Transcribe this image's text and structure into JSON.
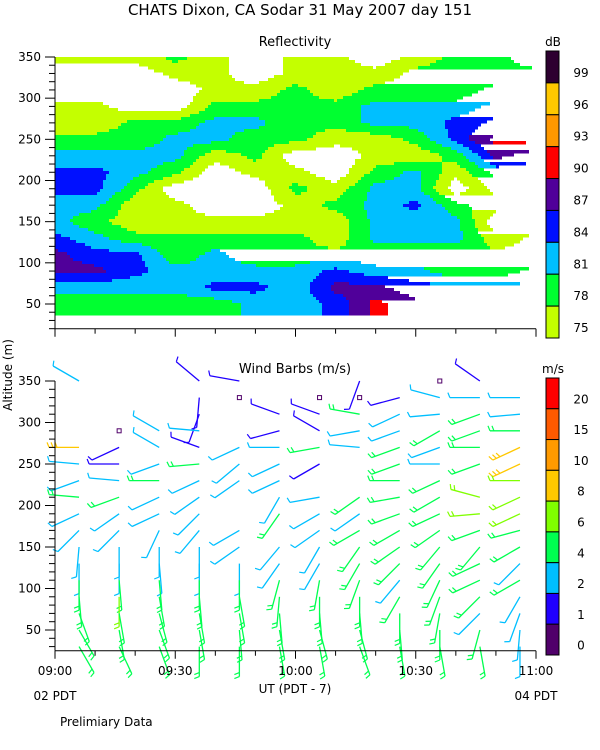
{
  "title": "CHATS  Dixon, CA   Sodar   31 May 2007   day 151",
  "y_axis_label": "Altitude (m)",
  "x_axis_label": "UT  (PDT - 7)",
  "x_start_local": "02 PDT",
  "x_end_local": "04 PDT",
  "footer_note": "Prelimiary Data",
  "chart_data": [
    {
      "type": "heatmap",
      "title": "Reflectivity",
      "colorbar_unit": "dB",
      "colorbar_levels": [
        75,
        78,
        81,
        84,
        87,
        90,
        93,
        96,
        99
      ],
      "colorbar_colors": [
        "#c4ff00",
        "#00ff30",
        "#00bfff",
        "#0010ff",
        "#50009a",
        "#ff0000",
        "#ff9800",
        "#ffc800",
        "#2d0030"
      ],
      "below_min_color": "#ffffff",
      "ylabel": "Altitude (m)",
      "ylim": [
        20,
        350
      ],
      "yticks": [
        50,
        100,
        150,
        200,
        250,
        300,
        350
      ],
      "x_times": [
        "09:00",
        "09:10",
        "09:20",
        "09:30",
        "09:40",
        "09:50",
        "10:00",
        "10:10",
        "10:20",
        "10:30",
        "10:40",
        "10:50",
        "11:00"
      ],
      "altitudes": [
        350,
        330,
        310,
        290,
        270,
        250,
        230,
        210,
        190,
        170,
        150,
        130,
        110,
        90,
        70,
        50
      ],
      "values_db": [
        [
          76,
          76,
          76,
          79,
          76,
          73,
          76,
          76,
          73,
          76,
          79,
          79,
          76
        ],
        [
          73,
          73,
          73,
          76,
          76,
          73,
          76,
          76,
          76,
          79,
          79,
          79,
          79
        ],
        [
          73,
          73,
          73,
          73,
          76,
          76,
          79,
          76,
          79,
          79,
          79,
          82,
          82
        ],
        [
          76,
          76,
          73,
          73,
          79,
          79,
          79,
          79,
          82,
          82,
          82,
          85,
          85
        ],
        [
          76,
          76,
          79,
          79,
          82,
          82,
          79,
          79,
          82,
          82,
          85,
          88,
          88
        ],
        [
          79,
          79,
          79,
          82,
          82,
          79,
          79,
          76,
          76,
          79,
          85,
          91,
          91
        ],
        [
          82,
          82,
          82,
          82,
          76,
          79,
          73,
          73,
          76,
          76,
          79,
          88,
          85
        ],
        [
          85,
          85,
          82,
          79,
          73,
          76,
          76,
          73,
          79,
          82,
          76,
          82,
          82
        ],
        [
          85,
          85,
          79,
          73,
          73,
          73,
          79,
          76,
          82,
          82,
          73,
          79,
          79
        ],
        [
          82,
          82,
          76,
          76,
          73,
          73,
          76,
          79,
          82,
          85,
          79,
          76,
          76
        ],
        [
          82,
          79,
          76,
          76,
          76,
          76,
          76,
          76,
          82,
          82,
          82,
          73,
          76
        ],
        [
          85,
          82,
          79,
          79,
          79,
          79,
          79,
          76,
          82,
          82,
          82,
          76,
          79
        ],
        [
          88,
          85,
          85,
          79,
          82,
          79,
          79,
          79,
          79,
          79,
          79,
          79,
          79
        ],
        [
          88,
          88,
          85,
          82,
          82,
          82,
          82,
          85,
          82,
          82,
          79,
          79,
          82
        ],
        [
          82,
          82,
          82,
          82,
          85,
          85,
          82,
          88,
          88,
          85,
          85,
          85,
          85
        ],
        [
          79,
          79,
          79,
          79,
          79,
          82,
          82,
          85,
          91,
          88,
          88,
          88,
          88
        ]
      ],
      "data_bottom_altitude": 40
    },
    {
      "type": "wind-barbs",
      "title": "Wind Barbs (m/s)",
      "colorbar_unit": "m/s",
      "colorbar_levels": [
        0,
        1,
        2,
        4,
        6,
        8,
        10,
        15,
        20
      ],
      "colorbar_colors": [
        "#50006a",
        "#2000ff",
        "#00bfff",
        "#00ff50",
        "#80ff00",
        "#ffc800",
        "#ff9a00",
        "#ff5a00",
        "#ff0000"
      ],
      "ylabel": "Altitude (m)",
      "ylim": [
        25,
        350
      ],
      "yticks": [
        50,
        100,
        150,
        200,
        250,
        300,
        350
      ],
      "xlabel": "UT  (PDT - 7)",
      "xlim": [
        "09:00",
        "11:00"
      ],
      "xticks": [
        "09:00",
        "09:30",
        "10:00",
        "10:30",
        "11:00"
      ],
      "altitudes": [
        350,
        330,
        310,
        290,
        270,
        250,
        230,
        210,
        190,
        170,
        150,
        130,
        110,
        90,
        70,
        50,
        30
      ],
      "profiles": [
        {
          "time": "09:06",
          "barbs": [
            [
              3,
              300
            ],
            null,
            null,
            null,
            [
              9,
              270
            ],
            [
              3,
              275
            ],
            [
              3,
              250
            ],
            [
              5,
              275
            ],
            [
              3,
              245
            ],
            [
              3,
              225
            ],
            [
              3,
              185
            ],
            [
              3,
              180
            ],
            [
              5,
              180
            ],
            [
              5,
              175
            ],
            [
              5,
              160
            ],
            [
              5,
              150
            ],
            [
              5,
              150
            ]
          ]
        },
        {
          "time": "09:16",
          "barbs": [
            null,
            null,
            null,
            [
              0,
              0
            ],
            [
              1.5,
              245
            ],
            [
              1.5,
              270
            ],
            [
              3,
              275
            ],
            [
              5,
              250
            ],
            [
              3,
              235
            ],
            [
              3,
              225
            ],
            [
              3,
              180
            ],
            [
              3,
              180
            ],
            [
              5,
              175
            ],
            [
              7,
              180
            ],
            [
              5,
              170
            ],
            [
              5,
              170
            ],
            [
              5,
              155
            ]
          ]
        },
        {
          "time": "09:26",
          "barbs": [
            null,
            null,
            null,
            [
              3,
              300
            ],
            [
              3,
              300
            ],
            [
              3,
              250
            ],
            [
              5,
              270
            ],
            [
              3,
              245
            ],
            [
              3,
              245
            ],
            [
              3,
              205
            ],
            [
              3,
              180
            ],
            [
              3,
              175
            ],
            [
              5,
              175
            ],
            [
              5,
              170
            ],
            [
              5,
              165
            ],
            [
              5,
              160
            ],
            [
              5,
              160
            ]
          ]
        },
        {
          "time": "09:36",
          "barbs": [
            [
              1.5,
              310
            ],
            [
              1.5,
              185
            ],
            [
              1.5,
              200
            ],
            [
              3,
              275
            ],
            [
              1.5,
              290
            ],
            [
              5,
              265
            ],
            [
              3,
              245
            ],
            [
              3,
              235
            ],
            [
              3,
              225
            ],
            [
              3,
              220
            ],
            [
              3,
              180
            ],
            [
              3,
              180
            ],
            [
              5,
              180
            ],
            [
              5,
              175
            ],
            [
              5,
              170
            ],
            [
              5,
              170
            ],
            [
              5,
              180
            ]
          ]
        },
        {
          "time": "09:46",
          "barbs": [
            [
              1.5,
              280
            ],
            [
              0,
              0
            ],
            null,
            null,
            [
              3,
              245
            ],
            [
              3,
              230
            ],
            [
              3,
              235
            ],
            null,
            null,
            [
              3,
              240
            ],
            [
              3,
              235
            ],
            [
              3,
              180
            ],
            [
              5,
              180
            ],
            [
              5,
              170
            ],
            [
              5,
              170
            ],
            [
              5,
              175
            ],
            [
              5,
              180
            ]
          ]
        },
        {
          "time": "09:56",
          "barbs": [
            null,
            null,
            [
              1.5,
              290
            ],
            [
              1.5,
              255
            ],
            [
              3,
              270
            ],
            [
              3,
              245
            ],
            [
              3,
              245
            ],
            [
              3,
              210
            ],
            [
              5,
              215
            ],
            null,
            [
              3,
              220
            ],
            [
              3,
              215
            ],
            [
              5,
              195
            ],
            [
              5,
              185
            ],
            [
              5,
              175
            ],
            [
              5,
              170
            ],
            [
              5,
              170
            ]
          ]
        },
        {
          "time": "10:06",
          "barbs": [
            null,
            [
              0,
              0
            ],
            [
              1.5,
              290
            ],
            [
              1.5,
              300
            ],
            [
              5,
              260
            ],
            [
              1.5,
              240
            ],
            null,
            [
              3,
              260
            ],
            [
              3,
              240
            ],
            [
              3,
              235
            ],
            [
              3,
              210
            ],
            [
              3,
              210
            ],
            [
              5,
              190
            ],
            [
              5,
              180
            ],
            [
              5,
              175
            ],
            [
              5,
              165
            ],
            [
              5,
              170
            ]
          ]
        },
        {
          "time": "10:16",
          "barbs": [
            [
              1.5,
              200
            ],
            [
              0,
              0
            ],
            [
              5,
              280
            ],
            [
              3,
              260
            ],
            [
              3,
              275
            ],
            null,
            null,
            [
              5,
              235
            ],
            [
              3,
              235
            ],
            [
              5,
              240
            ],
            [
              5,
              215
            ],
            [
              5,
              210
            ],
            [
              5,
              200
            ],
            [
              5,
              180
            ],
            [
              5,
              175
            ],
            [
              5,
              165
            ],
            [
              5,
              160
            ]
          ]
        },
        {
          "time": "10:26",
          "barbs": [
            null,
            [
              1.5,
              255
            ],
            [
              3,
              245
            ],
            [
              3,
              250
            ],
            [
              5,
              250
            ],
            [
              5,
              250
            ],
            [
              5,
              270
            ],
            [
              5,
              260
            ],
            [
              5,
              250
            ],
            [
              5,
              240
            ],
            [
              5,
              235
            ],
            [
              5,
              225
            ],
            [
              3,
              220
            ],
            [
              5,
              210
            ],
            [
              5,
              180
            ],
            [
              5,
              175
            ],
            [
              5,
              170
            ]
          ]
        },
        {
          "time": "10:36",
          "barbs": [
            [
              0,
              0
            ],
            [
              3,
              285
            ],
            [
              3,
              265
            ],
            [
              5,
              240
            ],
            [
              3,
              250
            ],
            [
              3,
              270
            ],
            [
              5,
              245
            ],
            [
              5,
              240
            ],
            [
              5,
              245
            ],
            [
              5,
              235
            ],
            [
              5,
              220
            ],
            [
              5,
              215
            ],
            [
              5,
              205
            ],
            [
              5,
              200
            ],
            [
              5,
              190
            ],
            [
              5,
              180
            ],
            [
              5,
              170
            ]
          ]
        },
        {
          "time": "10:46",
          "barbs": [
            [
              1.5,
              305
            ],
            [
              3,
              270
            ],
            [
              5,
              250
            ],
            [
              5,
              250
            ],
            [
              5,
              270
            ],
            [
              5,
              250
            ],
            null,
            [
              7,
              285
            ],
            [
              7,
              265
            ],
            [
              5,
              250
            ],
            [
              5,
              220
            ],
            [
              5,
              245
            ],
            [
              5,
              245
            ],
            [
              5,
              225
            ],
            [
              3,
              225
            ],
            [
              5,
              195
            ],
            [
              5,
              170
            ]
          ]
        },
        {
          "time": "10:56",
          "barbs": [
            null,
            [
              3,
              270
            ],
            [
              3,
              265
            ],
            [
              5,
              270
            ],
            [
              9,
              245
            ],
            [
              9,
              245
            ],
            [
              7,
              270
            ],
            [
              7,
              245
            ],
            [
              7,
              245
            ],
            [
              5,
              255
            ],
            [
              5,
              240
            ],
            [
              3,
              225
            ],
            [
              5,
              240
            ],
            [
              3,
              210
            ],
            [
              3,
              200
            ],
            [
              3,
              185
            ],
            [
              3,
              180
            ]
          ]
        }
      ]
    }
  ]
}
